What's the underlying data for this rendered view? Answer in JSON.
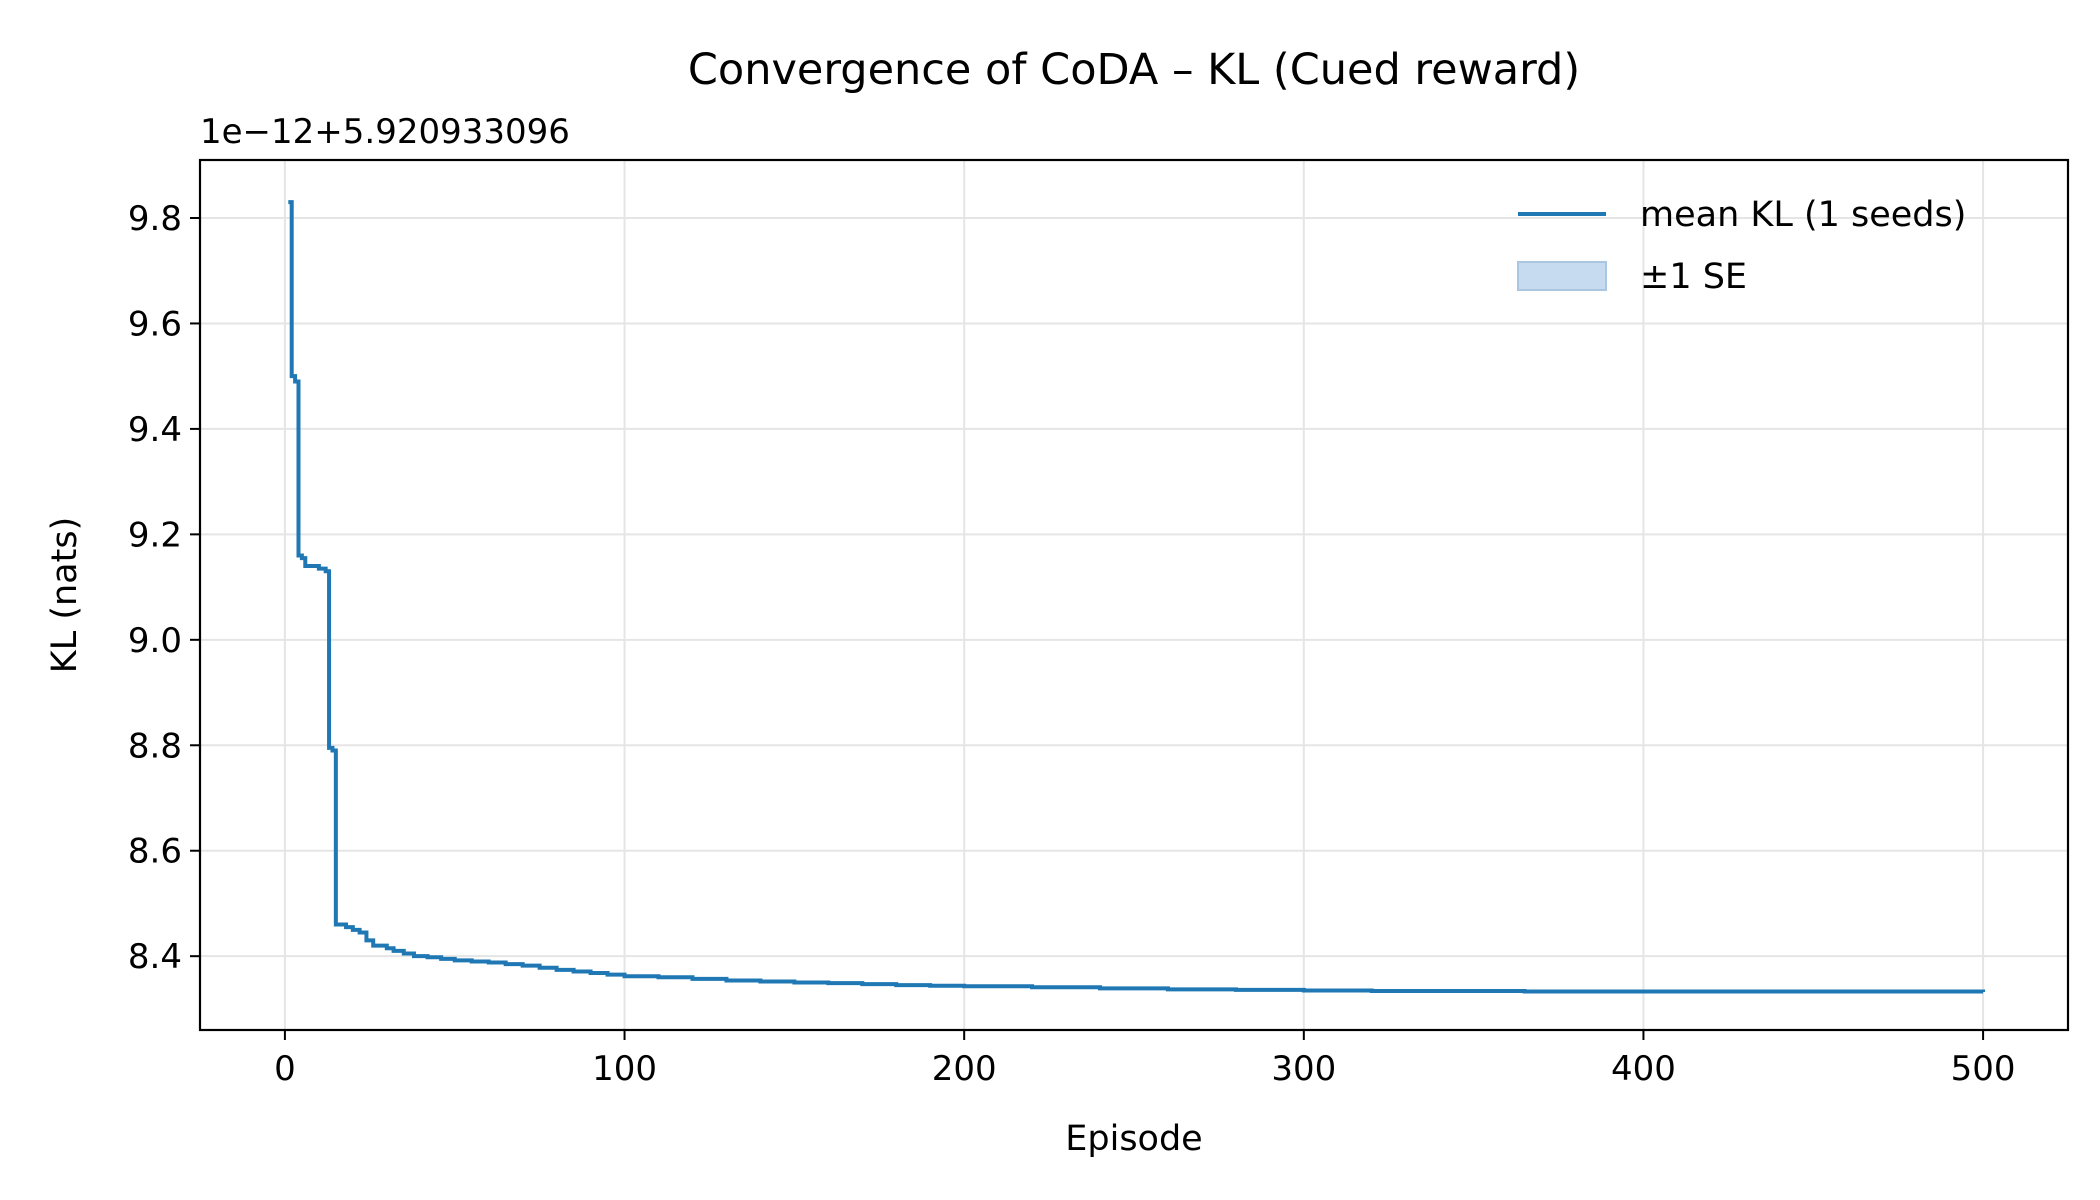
{
  "chart_data": {
    "type": "line",
    "title": "Convergence of CoDA – KL (Cued reward)",
    "xlabel": "Episode",
    "ylabel": "KL (nats)",
    "y_offset_label": "1e−12+5.920933096",
    "xlim": [
      -25,
      525
    ],
    "ylim": [
      8.26,
      9.91
    ],
    "x_ticks": [
      0,
      100,
      200,
      300,
      400,
      500
    ],
    "y_ticks": [
      8.4,
      8.6,
      8.8,
      9.0,
      9.2,
      9.4,
      9.6,
      9.8
    ],
    "x_tick_labels": [
      "0",
      "100",
      "200",
      "300",
      "400",
      "500"
    ],
    "y_tick_labels": [
      "8.4",
      "8.6",
      "8.8",
      "9.0",
      "9.2",
      "9.4",
      "9.6",
      "9.8"
    ],
    "grid": true,
    "legend_position": "top-right",
    "colors": {
      "line": "#1f77b4",
      "band": "#c6dbef",
      "grid": "#e5e5e5"
    },
    "legend": [
      {
        "label": "mean KL (1 seeds)",
        "kind": "line"
      },
      {
        "label": "±1 SE",
        "kind": "band"
      }
    ],
    "series": [
      {
        "name": "mean KL (1 seeds)",
        "x": [
          1,
          2,
          3,
          4,
          5,
          6,
          7,
          8,
          10,
          12,
          13,
          14,
          15,
          16,
          18,
          20,
          22,
          24,
          26,
          28,
          30,
          32,
          35,
          38,
          42,
          46,
          50,
          55,
          60,
          65,
          70,
          75,
          80,
          85,
          90,
          95,
          100,
          110,
          120,
          130,
          140,
          150,
          160,
          170,
          180,
          190,
          200,
          220,
          240,
          260,
          280,
          300,
          320,
          340,
          360,
          365,
          380,
          400,
          450,
          500
        ],
        "y": [
          9.83,
          9.5,
          9.49,
          9.16,
          9.155,
          9.14,
          9.14,
          9.14,
          9.135,
          9.13,
          8.795,
          8.79,
          8.46,
          8.46,
          8.455,
          8.45,
          8.445,
          8.43,
          8.42,
          8.42,
          8.415,
          8.41,
          8.405,
          8.4,
          8.398,
          8.395,
          8.392,
          8.39,
          8.388,
          8.385,
          8.382,
          8.378,
          8.374,
          8.371,
          8.368,
          8.365,
          8.362,
          8.36,
          8.357,
          8.354,
          8.352,
          8.35,
          8.349,
          8.347,
          8.345,
          8.344,
          8.343,
          8.341,
          8.339,
          8.337,
          8.336,
          8.335,
          8.334,
          8.334,
          8.334,
          8.333,
          8.333,
          8.333,
          8.333,
          8.332
        ]
      }
    ]
  }
}
